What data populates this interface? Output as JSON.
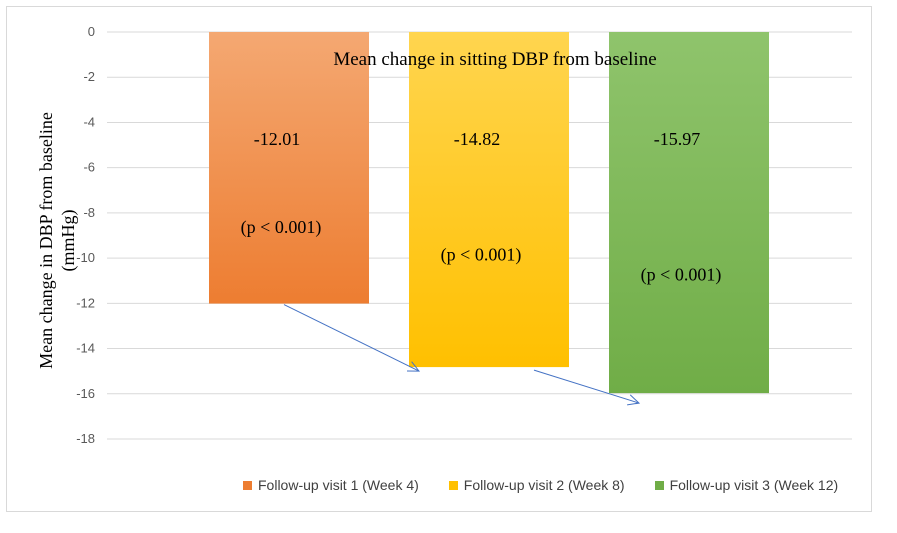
{
  "chart_data": {
    "type": "bar",
    "title": "Mean change in sitting DBP from baseline",
    "ylabel_lines": [
      "Mean change in DBP from baseline",
      "(mmHg)"
    ],
    "xlabel": "",
    "ylim": [
      -18,
      0
    ],
    "yticks": [
      0,
      -2,
      -4,
      -6,
      -8,
      -10,
      -12,
      -14,
      -16,
      -18
    ],
    "grid": true,
    "legend_position": "bottom",
    "series": [
      {
        "name": "Follow-up visit 1 (Week 4)",
        "value": -12.01,
        "value_label": "-12.01",
        "p_label": "(p < 0.001)",
        "color": "#ed7d31",
        "color_light": "#f4a872"
      },
      {
        "name": "Follow-up visit 2 (Week 8)",
        "value": -14.82,
        "value_label": "-14.82",
        "p_label": "(p < 0.001)",
        "color": "#ffc000",
        "color_light": "#ffd54f"
      },
      {
        "name": "Follow-up visit 3 (Week 12)",
        "value": -15.97,
        "value_label": "-15.97",
        "p_label": "(p < 0.001)",
        "color": "#70ad47",
        "color_light": "#8fc46c"
      }
    ],
    "arrow_color": "#4472c4"
  }
}
